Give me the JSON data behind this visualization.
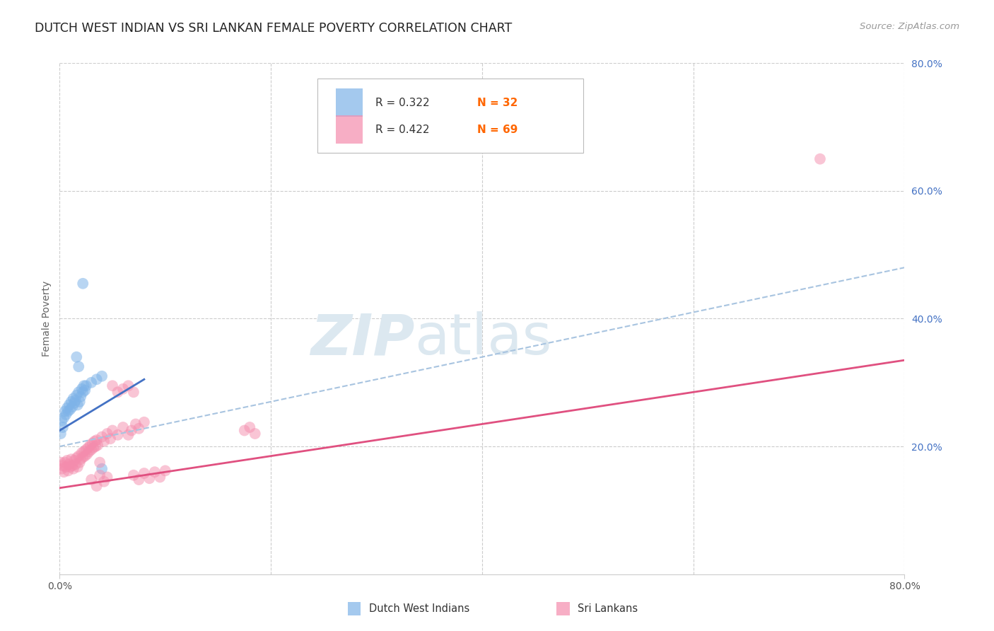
{
  "title": "DUTCH WEST INDIAN VS SRI LANKAN FEMALE POVERTY CORRELATION CHART",
  "source": "Source: ZipAtlas.com",
  "ylabel": "Female Poverty",
  "xlim": [
    0.0,
    0.8
  ],
  "ylim": [
    0.0,
    0.8
  ],
  "background_color": "#ffffff",
  "grid_color": "#cccccc",
  "axis_color": "#cccccc",
  "right_tick_color": "#4472c4",
  "n_color": "#ff6600",
  "dwi_color": "#7eb3e8",
  "sri_color": "#f48cad",
  "dwi_line_color": "#4472c4",
  "sri_line_color": "#e05080",
  "dwi_dash_color": "#a8c4e0",
  "watermark_color": "#dce8f0",
  "dwi_line_x0": 0.0,
  "dwi_line_y0": 0.225,
  "dwi_line_x1": 0.08,
  "dwi_line_y1": 0.305,
  "sri_line_x0": 0.0,
  "sri_line_y0": 0.135,
  "sri_line_x1": 0.8,
  "sri_line_y1": 0.335,
  "dash_line_x0": 0.0,
  "dash_line_y0": 0.2,
  "dash_line_x1": 0.8,
  "dash_line_y1": 0.48,
  "dwi_points": [
    [
      0.001,
      0.22
    ],
    [
      0.002,
      0.24
    ],
    [
      0.003,
      0.23
    ],
    [
      0.004,
      0.245
    ],
    [
      0.005,
      0.255
    ],
    [
      0.006,
      0.25
    ],
    [
      0.007,
      0.26
    ],
    [
      0.008,
      0.255
    ],
    [
      0.009,
      0.265
    ],
    [
      0.01,
      0.258
    ],
    [
      0.011,
      0.27
    ],
    [
      0.012,
      0.262
    ],
    [
      0.013,
      0.275
    ],
    [
      0.014,
      0.268
    ],
    [
      0.015,
      0.272
    ],
    [
      0.016,
      0.28
    ],
    [
      0.017,
      0.265
    ],
    [
      0.018,
      0.285
    ],
    [
      0.019,
      0.27
    ],
    [
      0.02,
      0.278
    ],
    [
      0.021,
      0.29
    ],
    [
      0.022,
      0.285
    ],
    [
      0.023,
      0.295
    ],
    [
      0.024,
      0.288
    ],
    [
      0.025,
      0.295
    ],
    [
      0.03,
      0.3
    ],
    [
      0.035,
      0.305
    ],
    [
      0.04,
      0.31
    ],
    [
      0.022,
      0.455
    ],
    [
      0.016,
      0.34
    ],
    [
      0.018,
      0.325
    ],
    [
      0.04,
      0.165
    ]
  ],
  "sri_points": [
    [
      0.001,
      0.175
    ],
    [
      0.002,
      0.165
    ],
    [
      0.003,
      0.17
    ],
    [
      0.004,
      0.16
    ],
    [
      0.005,
      0.175
    ],
    [
      0.006,
      0.168
    ],
    [
      0.007,
      0.178
    ],
    [
      0.008,
      0.162
    ],
    [
      0.009,
      0.172
    ],
    [
      0.01,
      0.168
    ],
    [
      0.011,
      0.18
    ],
    [
      0.012,
      0.17
    ],
    [
      0.013,
      0.165
    ],
    [
      0.014,
      0.178
    ],
    [
      0.015,
      0.172
    ],
    [
      0.016,
      0.182
    ],
    [
      0.017,
      0.168
    ],
    [
      0.018,
      0.185
    ],
    [
      0.019,
      0.175
    ],
    [
      0.02,
      0.18
    ],
    [
      0.021,
      0.19
    ],
    [
      0.022,
      0.183
    ],
    [
      0.023,
      0.192
    ],
    [
      0.024,
      0.185
    ],
    [
      0.025,
      0.195
    ],
    [
      0.026,
      0.188
    ],
    [
      0.027,
      0.198
    ],
    [
      0.028,
      0.192
    ],
    [
      0.029,
      0.202
    ],
    [
      0.03,
      0.195
    ],
    [
      0.031,
      0.205
    ],
    [
      0.032,
      0.198
    ],
    [
      0.033,
      0.208
    ],
    [
      0.034,
      0.2
    ],
    [
      0.035,
      0.21
    ],
    [
      0.036,
      0.202
    ],
    [
      0.038,
      0.175
    ],
    [
      0.04,
      0.215
    ],
    [
      0.042,
      0.208
    ],
    [
      0.045,
      0.22
    ],
    [
      0.048,
      0.212
    ],
    [
      0.05,
      0.225
    ],
    [
      0.055,
      0.218
    ],
    [
      0.06,
      0.23
    ],
    [
      0.05,
      0.295
    ],
    [
      0.055,
      0.285
    ],
    [
      0.06,
      0.29
    ],
    [
      0.065,
      0.295
    ],
    [
      0.07,
      0.285
    ],
    [
      0.065,
      0.218
    ],
    [
      0.068,
      0.225
    ],
    [
      0.072,
      0.235
    ],
    [
      0.075,
      0.228
    ],
    [
      0.08,
      0.238
    ],
    [
      0.07,
      0.155
    ],
    [
      0.075,
      0.148
    ],
    [
      0.08,
      0.158
    ],
    [
      0.085,
      0.15
    ],
    [
      0.09,
      0.16
    ],
    [
      0.095,
      0.152
    ],
    [
      0.1,
      0.162
    ],
    [
      0.038,
      0.155
    ],
    [
      0.042,
      0.145
    ],
    [
      0.045,
      0.152
    ],
    [
      0.03,
      0.148
    ],
    [
      0.035,
      0.138
    ],
    [
      0.72,
      0.65
    ],
    [
      0.175,
      0.225
    ],
    [
      0.18,
      0.23
    ],
    [
      0.185,
      0.22
    ]
  ]
}
